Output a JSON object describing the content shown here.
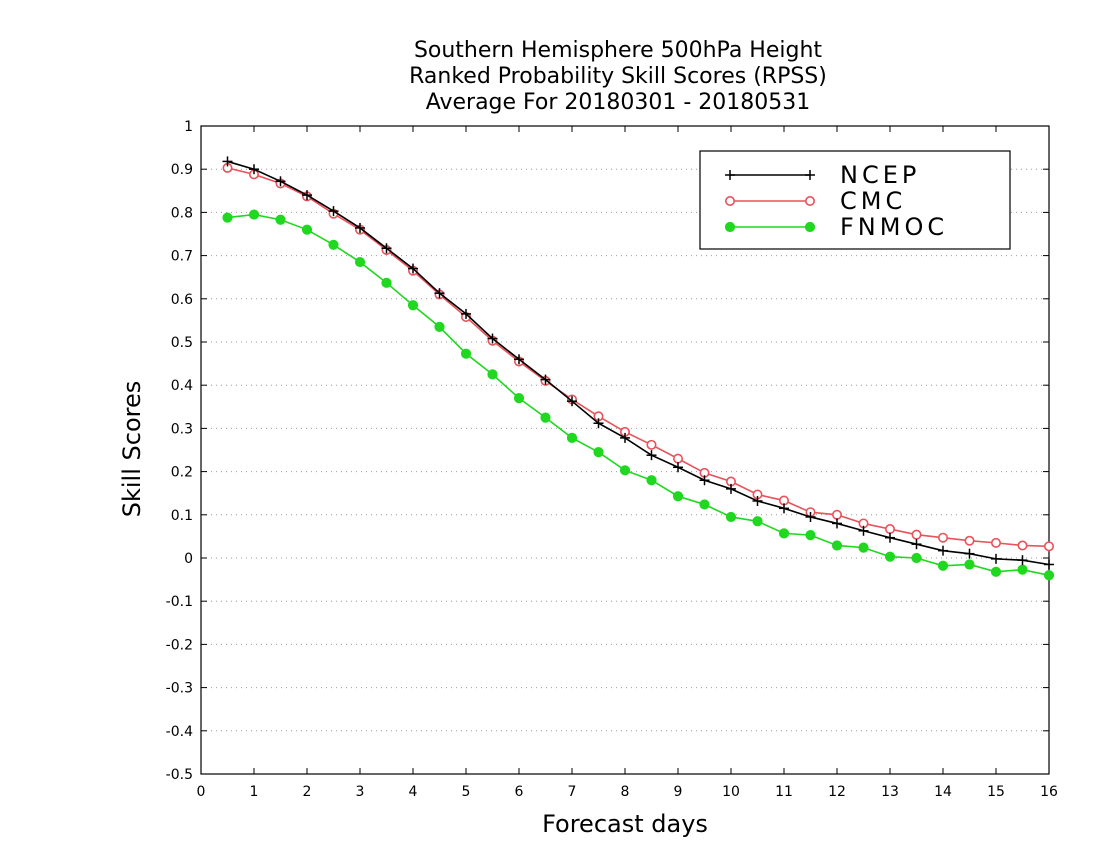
{
  "chart_data": {
    "type": "line",
    "title_lines": [
      "Southern Hemisphere 500hPa Height",
      "Ranked Probability Skill Scores (RPSS)",
      "Average For 20180301 - 20180531"
    ],
    "xlabel": "Forecast days",
    "ylabel": "Skill Scores",
    "xlim": [
      0,
      16
    ],
    "ylim": [
      -0.5,
      1
    ],
    "x_ticks": [
      0,
      1,
      2,
      3,
      4,
      5,
      6,
      7,
      8,
      9,
      10,
      11,
      12,
      13,
      14,
      15,
      16
    ],
    "x_tick_labels": [
      "0",
      "1",
      "2",
      "3",
      "4",
      "5",
      "6",
      "7",
      "8",
      "9",
      "10",
      "11",
      "12",
      "13",
      "14",
      "15",
      "16"
    ],
    "y_ticks": [
      -0.5,
      -0.4,
      -0.3,
      -0.2,
      -0.1,
      0,
      0.1,
      0.2,
      0.3,
      0.4,
      0.5,
      0.6,
      0.7,
      0.8,
      0.9,
      1
    ],
    "y_tick_labels": [
      "-0.5",
      "-0.4",
      "-0.3",
      "-0.2",
      "-0.1",
      "0",
      "0.1",
      "0.2",
      "0.3",
      "0.4",
      "0.5",
      "0.6",
      "0.7",
      "0.8",
      "0.9",
      "1"
    ],
    "grid": true,
    "legend_position": "top-right",
    "x": [
      0.5,
      1,
      1.5,
      2,
      2.5,
      3,
      3.5,
      4,
      4.5,
      5,
      5.5,
      6,
      6.5,
      7,
      7.5,
      8,
      8.5,
      9,
      9.5,
      10,
      10.5,
      11,
      11.5,
      12,
      12.5,
      13,
      13.5,
      14,
      14.5,
      15,
      15.5,
      16
    ],
    "series": [
      {
        "name": "NCEP",
        "color": "#000000",
        "marker": "plus",
        "values": [
          0.918,
          0.9,
          0.872,
          0.84,
          0.803,
          0.764,
          0.717,
          0.67,
          0.613,
          0.565,
          0.508,
          0.46,
          0.413,
          0.363,
          0.312,
          0.278,
          0.238,
          0.21,
          0.18,
          0.16,
          0.132,
          0.115,
          0.095,
          0.08,
          0.063,
          0.047,
          0.032,
          0.017,
          0.01,
          -0.002,
          -0.005,
          -0.015
        ]
      },
      {
        "name": "CMC",
        "color": "#e8525a",
        "marker": "open-circle",
        "values": [
          0.903,
          0.888,
          0.867,
          0.837,
          0.797,
          0.76,
          0.713,
          0.665,
          0.61,
          0.558,
          0.503,
          0.455,
          0.41,
          0.367,
          0.328,
          0.292,
          0.262,
          0.23,
          0.197,
          0.177,
          0.147,
          0.133,
          0.106,
          0.1,
          0.08,
          0.067,
          0.054,
          0.047,
          0.04,
          0.035,
          0.029,
          0.027
        ]
      },
      {
        "name": "FNMOC",
        "color": "#1fd81f",
        "marker": "filled-circle",
        "values": [
          0.788,
          0.795,
          0.783,
          0.76,
          0.725,
          0.685,
          0.637,
          0.585,
          0.535,
          0.473,
          0.425,
          0.37,
          0.325,
          0.278,
          0.245,
          0.203,
          0.18,
          0.143,
          0.124,
          0.095,
          0.085,
          0.057,
          0.053,
          0.029,
          0.024,
          0.003,
          0.0,
          -0.018,
          -0.015,
          -0.032,
          -0.027,
          -0.04
        ]
      }
    ]
  }
}
